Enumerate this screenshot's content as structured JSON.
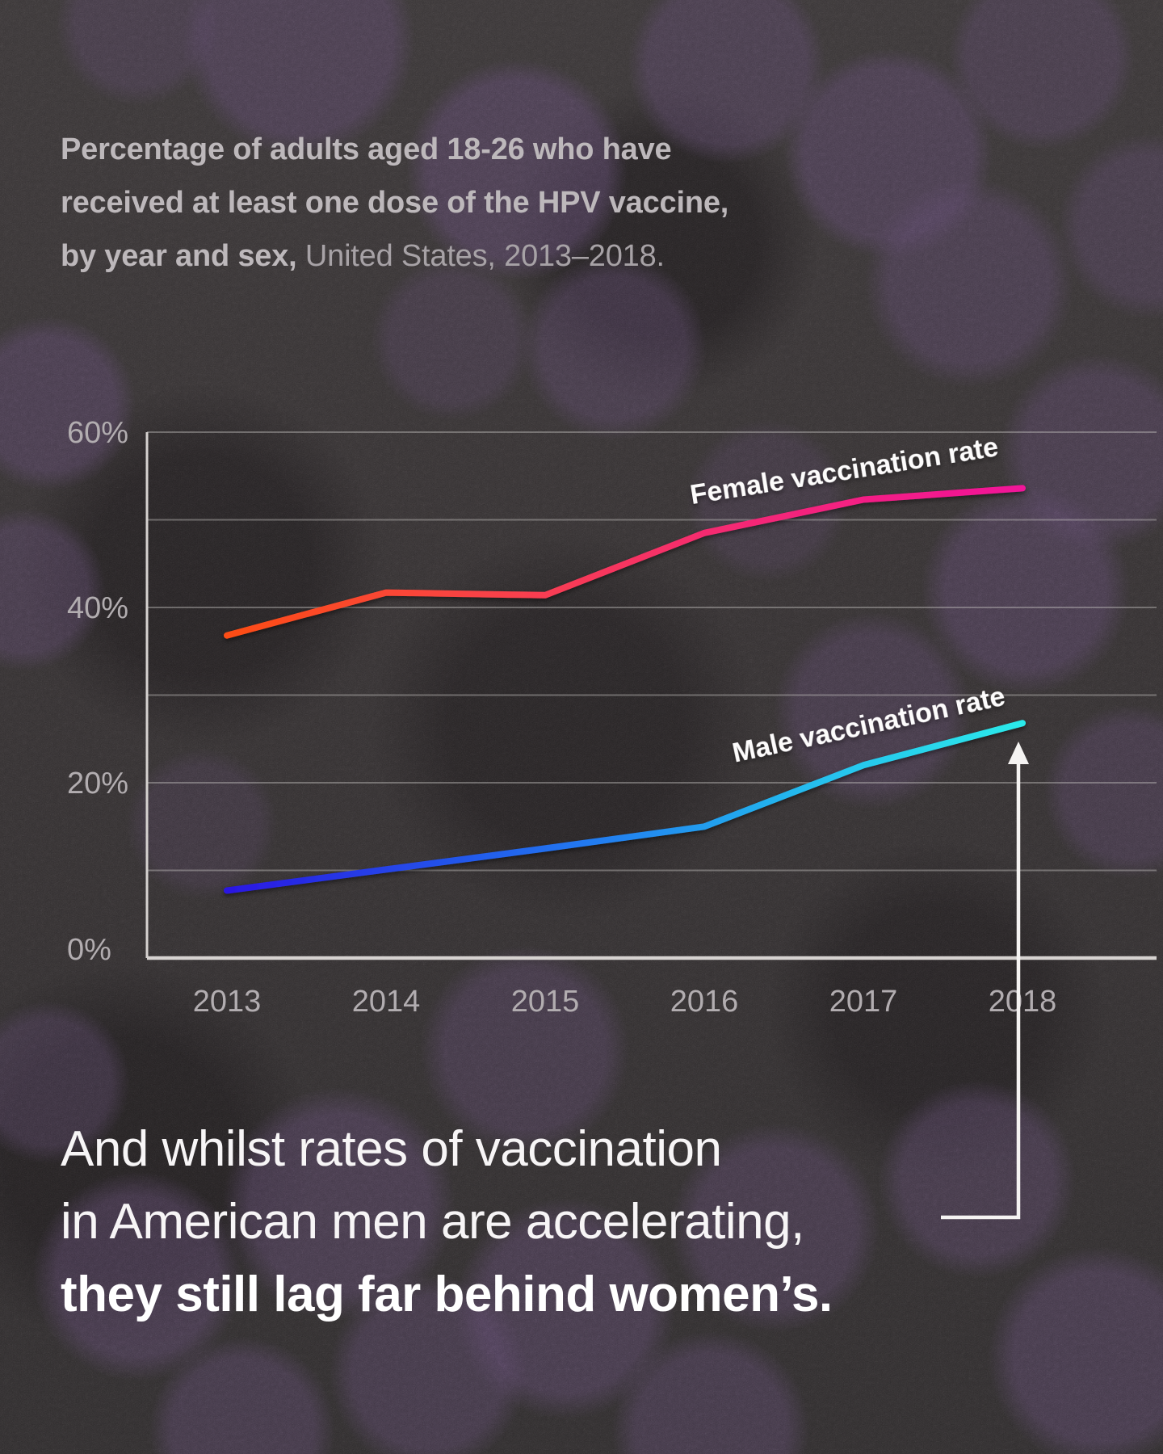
{
  "title": {
    "line1": "Percentage of adults aged 18-26 who have",
    "line2": "received at least one dose of the HPV vaccine,",
    "line3_bold": "by year and sex,",
    "line3_regular": " United States, 2013–2018."
  },
  "caption": {
    "line1": "And whilst rates of vaccination",
    "line2": "in American men are accelerating,",
    "line3": "they still lag far behind women’s."
  },
  "chart_data": {
    "type": "line",
    "x": [
      2013,
      2014,
      2015,
      2016,
      2017,
      2018
    ],
    "series": [
      {
        "name": "Female vaccination rate",
        "values": [
          36.8,
          41.7,
          41.4,
          48.5,
          52.3,
          53.6
        ],
        "gradient": [
          {
            "offset": "0%",
            "color": "#fd4d15"
          },
          {
            "offset": "35%",
            "color": "#f8414b"
          },
          {
            "offset": "62%",
            "color": "#f52a72"
          },
          {
            "offset": "100%",
            "color": "#f11399"
          }
        ]
      },
      {
        "name": "Male vaccination rate",
        "values": [
          7.7,
          10.1,
          12.5,
          15.0,
          22.0,
          26.8
        ],
        "gradient": [
          {
            "offset": "0%",
            "color": "#2a17e2"
          },
          {
            "offset": "45%",
            "color": "#2079f0"
          },
          {
            "offset": "75%",
            "color": "#25c1ee"
          },
          {
            "offset": "100%",
            "color": "#2ceaea"
          }
        ]
      }
    ],
    "ylim": [
      0,
      60
    ],
    "yticks": [
      {
        "value": 0,
        "label": "0%"
      },
      {
        "value": 20,
        "label": "20%"
      },
      {
        "value": 40,
        "label": "40%"
      },
      {
        "value": 60,
        "label": "60%"
      }
    ],
    "gridline_step": 10,
    "grid": true,
    "legend_position": "inline-labels-on-lines",
    "annotation_arrow": "from caption line 2 up to the 2018 end of the male line"
  },
  "colors": {
    "background": "#322e2f",
    "virus_blob": "#564264",
    "title_text": "#bdb8bb",
    "axis_labels": "#b2adb0",
    "gridline": "#c9c5c3",
    "axis_line": "#d6d2d0",
    "caption_text": "#ffffff",
    "arrow": "#f5f3f2",
    "female_line_start": "#fd4d15",
    "female_line_end": "#f11399",
    "male_line_start": "#2a17e2",
    "male_line_end": "#2ceaea"
  }
}
